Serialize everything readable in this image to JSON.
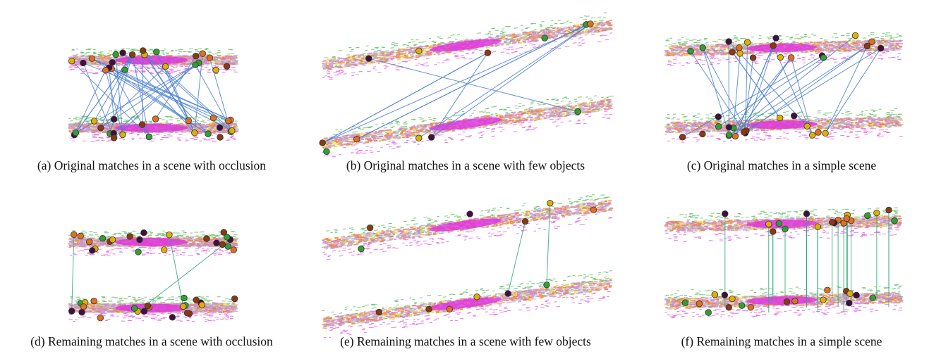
{
  "captions": [
    "(a) Original matches in a scene with occlusion",
    "(b) Original matches in a scene with few objects",
    "(c) Original matches in a simple scene",
    "(d) Remaining matches in a scene with occlusion",
    "(e) Remaining matches in a scene with few objects",
    "(f) Remaining matches in a simple scene"
  ]
}
